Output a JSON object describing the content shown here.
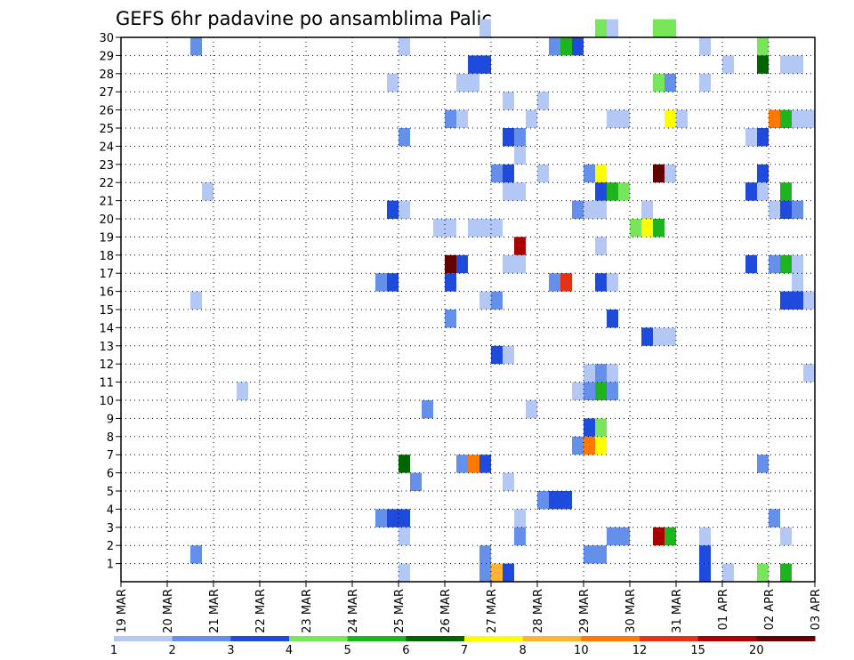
{
  "chart_data": {
    "type": "heatmap",
    "title": "GEFS 6hr padavine po ansamblima Palic",
    "xlabel": "",
    "ylabel": "",
    "x_ticks": [
      "19 MAR",
      "20 MAR",
      "21 MAR",
      "22 MAR",
      "23 MAR",
      "24 MAR",
      "25 MAR",
      "26 MAR",
      "27 MAR",
      "28 MAR",
      "29 MAR",
      "30 MAR",
      "31 MAR",
      "01 APR",
      "02 APR",
      "03 APR"
    ],
    "x_range_steps": [
      0,
      60
    ],
    "steps_per_day": 4,
    "y_ticks": [
      1,
      2,
      3,
      4,
      5,
      6,
      7,
      8,
      9,
      10,
      11,
      12,
      13,
      14,
      15,
      16,
      17,
      18,
      19,
      20,
      21,
      22,
      23,
      24,
      25,
      26,
      27,
      28,
      29,
      30
    ],
    "y_range": [
      0,
      30
    ],
    "grid": "dotted",
    "colorbar": {
      "labels": [
        "1",
        "2",
        "3",
        "4",
        "5",
        "6",
        "7",
        "8",
        "10",
        "12",
        "15",
        "20"
      ],
      "colors": [
        "#b4c8f5",
        "#6490eb",
        "#1e4bdc",
        "#78e65a",
        "#1eb41e",
        "#006400",
        "#ffff00",
        "#ffb432",
        "#ff7800",
        "#e63214",
        "#aa0000",
        "#640000"
      ],
      "position": "bottom"
    },
    "cells": [
      [
        30,
        31,
        1
      ],
      [
        30,
        41,
        4
      ],
      [
        30,
        42,
        1
      ],
      [
        30,
        46,
        4
      ],
      [
        30,
        47,
        4
      ],
      [
        29,
        6,
        2
      ],
      [
        29,
        24,
        1
      ],
      [
        29,
        37,
        2
      ],
      [
        29,
        38,
        5
      ],
      [
        29,
        39,
        3
      ],
      [
        29,
        50,
        1
      ],
      [
        29,
        55,
        4
      ],
      [
        28,
        30,
        3
      ],
      [
        28,
        31,
        3
      ],
      [
        28,
        52,
        1
      ],
      [
        28,
        55,
        6
      ],
      [
        28,
        57,
        1
      ],
      [
        28,
        58,
        1
      ],
      [
        27,
        23,
        1
      ],
      [
        27,
        29,
        1
      ],
      [
        27,
        30,
        1
      ],
      [
        27,
        46,
        4
      ],
      [
        27,
        47,
        2
      ],
      [
        27,
        50,
        1
      ],
      [
        26,
        33,
        1
      ],
      [
        26,
        36,
        1
      ],
      [
        25,
        28,
        2
      ],
      [
        25,
        29,
        1
      ],
      [
        25,
        35,
        1
      ],
      [
        25,
        42,
        1
      ],
      [
        25,
        43,
        1
      ],
      [
        25,
        47,
        7
      ],
      [
        25,
        48,
        1
      ],
      [
        25,
        56,
        9
      ],
      [
        25,
        57,
        5
      ],
      [
        25,
        58,
        1
      ],
      [
        25,
        59,
        1
      ],
      [
        24,
        24,
        2
      ],
      [
        24,
        33,
        3
      ],
      [
        24,
        34,
        2
      ],
      [
        24,
        54,
        1
      ],
      [
        24,
        55,
        3
      ],
      [
        23,
        34,
        1
      ],
      [
        22,
        32,
        2
      ],
      [
        22,
        33,
        3
      ],
      [
        22,
        36,
        1
      ],
      [
        22,
        40,
        2
      ],
      [
        22,
        41,
        7
      ],
      [
        22,
        46,
        12
      ],
      [
        22,
        47,
        1
      ],
      [
        22,
        55,
        3
      ],
      [
        21,
        7,
        1
      ],
      [
        21,
        33,
        1
      ],
      [
        21,
        34,
        1
      ],
      [
        21,
        41,
        3
      ],
      [
        21,
        42,
        5
      ],
      [
        21,
        43,
        4
      ],
      [
        21,
        54,
        3
      ],
      [
        21,
        55,
        1
      ],
      [
        21,
        57,
        5
      ],
      [
        20,
        23,
        3
      ],
      [
        20,
        24,
        1
      ],
      [
        20,
        39,
        2
      ],
      [
        20,
        40,
        1
      ],
      [
        20,
        41,
        1
      ],
      [
        20,
        45,
        1
      ],
      [
        20,
        56,
        1
      ],
      [
        20,
        57,
        3
      ],
      [
        20,
        58,
        2
      ],
      [
        19,
        27,
        1
      ],
      [
        19,
        28,
        1
      ],
      [
        19,
        30,
        1
      ],
      [
        19,
        31,
        1
      ],
      [
        19,
        32,
        1
      ],
      [
        19,
        44,
        4
      ],
      [
        19,
        45,
        7
      ],
      [
        19,
        46,
        5
      ],
      [
        18,
        34,
        11
      ],
      [
        18,
        41,
        1
      ],
      [
        17,
        28,
        12
      ],
      [
        17,
        29,
        3
      ],
      [
        17,
        33,
        1
      ],
      [
        17,
        34,
        1
      ],
      [
        17,
        54,
        3
      ],
      [
        17,
        56,
        2
      ],
      [
        17,
        57,
        5
      ],
      [
        17,
        58,
        1
      ],
      [
        16,
        22,
        2
      ],
      [
        16,
        23,
        3
      ],
      [
        16,
        28,
        3
      ],
      [
        16,
        37,
        2
      ],
      [
        16,
        38,
        10
      ],
      [
        16,
        41,
        3
      ],
      [
        16,
        42,
        1
      ],
      [
        16,
        58,
        1
      ],
      [
        15,
        6,
        1
      ],
      [
        15,
        31,
        1
      ],
      [
        15,
        32,
        2
      ],
      [
        15,
        57,
        3
      ],
      [
        15,
        58,
        3
      ],
      [
        15,
        59,
        1
      ],
      [
        15,
        60,
        2
      ],
      [
        14,
        28,
        2
      ],
      [
        14,
        42,
        3
      ],
      [
        13,
        45,
        3
      ],
      [
        13,
        46,
        1
      ],
      [
        13,
        47,
        1
      ],
      [
        12,
        32,
        3
      ],
      [
        12,
        33,
        1
      ],
      [
        11,
        40,
        1
      ],
      [
        11,
        41,
        2
      ],
      [
        11,
        42,
        1
      ],
      [
        11,
        59,
        1
      ],
      [
        10,
        10,
        1
      ],
      [
        10,
        39,
        1
      ],
      [
        10,
        40,
        2
      ],
      [
        10,
        41,
        5
      ],
      [
        10,
        42,
        2
      ],
      [
        9,
        26,
        2
      ],
      [
        9,
        35,
        1
      ],
      [
        8,
        40,
        3
      ],
      [
        8,
        41,
        4
      ],
      [
        7,
        39,
        2
      ],
      [
        7,
        40,
        9
      ],
      [
        7,
        41,
        7
      ],
      [
        6,
        24,
        6
      ],
      [
        6,
        29,
        2
      ],
      [
        6,
        30,
        9
      ],
      [
        6,
        31,
        3
      ],
      [
        6,
        55,
        2
      ],
      [
        5,
        25,
        2
      ],
      [
        5,
        33,
        1
      ],
      [
        4,
        36,
        2
      ],
      [
        4,
        37,
        3
      ],
      [
        4,
        38,
        3
      ],
      [
        3,
        22,
        2
      ],
      [
        3,
        23,
        3
      ],
      [
        3,
        24,
        3
      ],
      [
        3,
        34,
        1
      ],
      [
        3,
        56,
        2
      ],
      [
        2,
        24,
        1
      ],
      [
        2,
        34,
        2
      ],
      [
        2,
        42,
        2
      ],
      [
        2,
        43,
        2
      ],
      [
        2,
        46,
        11
      ],
      [
        2,
        47,
        5
      ],
      [
        2,
        50,
        1
      ],
      [
        2,
        57,
        1
      ],
      [
        2,
        60,
        1
      ],
      [
        1,
        6,
        2
      ],
      [
        1,
        31,
        2
      ],
      [
        1,
        40,
        2
      ],
      [
        1,
        41,
        2
      ],
      [
        1,
        50,
        3
      ],
      [
        0,
        24,
        1
      ],
      [
        0,
        31,
        2
      ],
      [
        0,
        32,
        8
      ],
      [
        0,
        33,
        3
      ],
      [
        0,
        50,
        3
      ],
      [
        0,
        52,
        1
      ],
      [
        0,
        55,
        4
      ],
      [
        0,
        57,
        5
      ]
    ]
  }
}
